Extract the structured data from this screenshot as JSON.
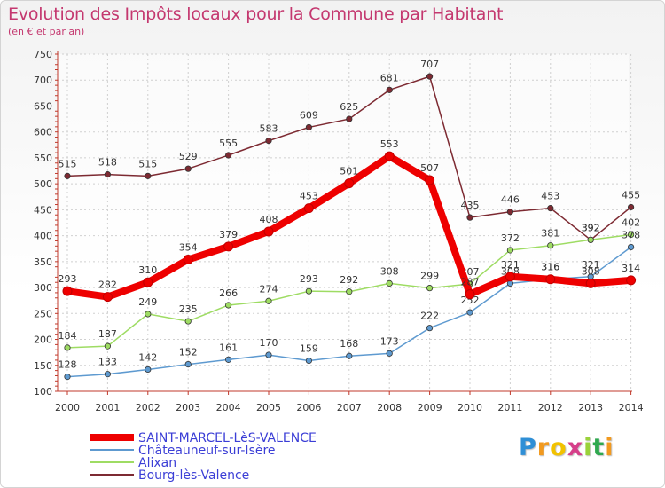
{
  "header": {
    "title": "Evolution des Impôts locaux pour la Commune par Habitant",
    "subtitle": "(en € et par an)"
  },
  "chart_data": {
    "type": "line",
    "title": "Evolution des Impôts locaux pour la Commune par Habitant",
    "subtitle": "(en € et par an)",
    "xlabel": "",
    "ylabel": "",
    "categories": [
      "2000",
      "2001",
      "2002",
      "2003",
      "2004",
      "2005",
      "2006",
      "2007",
      "2008",
      "2009",
      "2010",
      "2011",
      "2012",
      "2013",
      "2014"
    ],
    "yticks": [
      100,
      150,
      200,
      250,
      300,
      350,
      400,
      450,
      500,
      550,
      600,
      650,
      700,
      750
    ],
    "ylim": [
      100,
      750
    ],
    "grid": true,
    "legend_position": "bottom-left",
    "series": [
      {
        "name": "Bourg-lès-Valence",
        "color": "#7d2a32",
        "values": [
          515,
          518,
          515,
          529,
          555,
          583,
          609,
          625,
          681,
          707,
          435,
          446,
          453,
          392,
          455
        ],
        "labels": [
          "515",
          "518",
          "515",
          "529",
          "555",
          "583",
          "609",
          "625",
          "681",
          "707",
          "435",
          "446",
          "453",
          "392",
          "455"
        ]
      },
      {
        "name": "Alixan",
        "color": "#9edc63",
        "values": [
          184,
          187,
          249,
          235,
          266,
          274,
          293,
          292,
          308,
          299,
          307,
          372,
          381,
          392,
          402
        ],
        "labels": [
          "184",
          "187",
          "249",
          "235",
          "266",
          "274",
          "293",
          "292",
          "308",
          "299",
          "307",
          "372",
          "381",
          "392",
          "402"
        ]
      },
      {
        "name": "Châteauneuf-sur-Isère",
        "color": "#5e9ad0",
        "values": [
          128,
          133,
          142,
          152,
          161,
          170,
          159,
          168,
          173,
          222,
          252,
          308,
          316,
          321,
          378
        ],
        "labels": [
          "128",
          "133",
          "142",
          "152",
          "161",
          "170",
          "159",
          "168",
          "173",
          "222",
          "252",
          "308",
          "316",
          "321",
          "378"
        ]
      },
      {
        "name": "SAINT-MARCEL-LèS-VALENCE",
        "color": "#ee0000",
        "values": [
          293,
          282,
          310,
          354,
          379,
          408,
          453,
          501,
          553,
          507,
          287,
          321,
          316,
          308,
          314
        ],
        "labels": [
          "293",
          "282",
          "310",
          "354",
          "379",
          "408",
          "453",
          "501",
          "553",
          "507",
          "287",
          "321",
          "316",
          "308",
          "314"
        ]
      }
    ]
  },
  "legend": {
    "items": [
      {
        "label": "SAINT-MARCEL-LèS-VALENCE",
        "color": "#ee0000"
      },
      {
        "label": "Châteauneuf-sur-Isère",
        "color": "#5e9ad0"
      },
      {
        "label": "Alixan",
        "color": "#9edc63"
      },
      {
        "label": "Bourg-lès-Valence",
        "color": "#7d2a32"
      }
    ]
  },
  "logo": {
    "letters": [
      "P",
      "r",
      "o",
      "x",
      "i",
      "t",
      "i"
    ],
    "colors": [
      "#2f8fd6",
      "#f29a1f",
      "#f2c200",
      "#d63f8a",
      "#9ad23a",
      "#2fa84f",
      "#f29a1f"
    ]
  }
}
